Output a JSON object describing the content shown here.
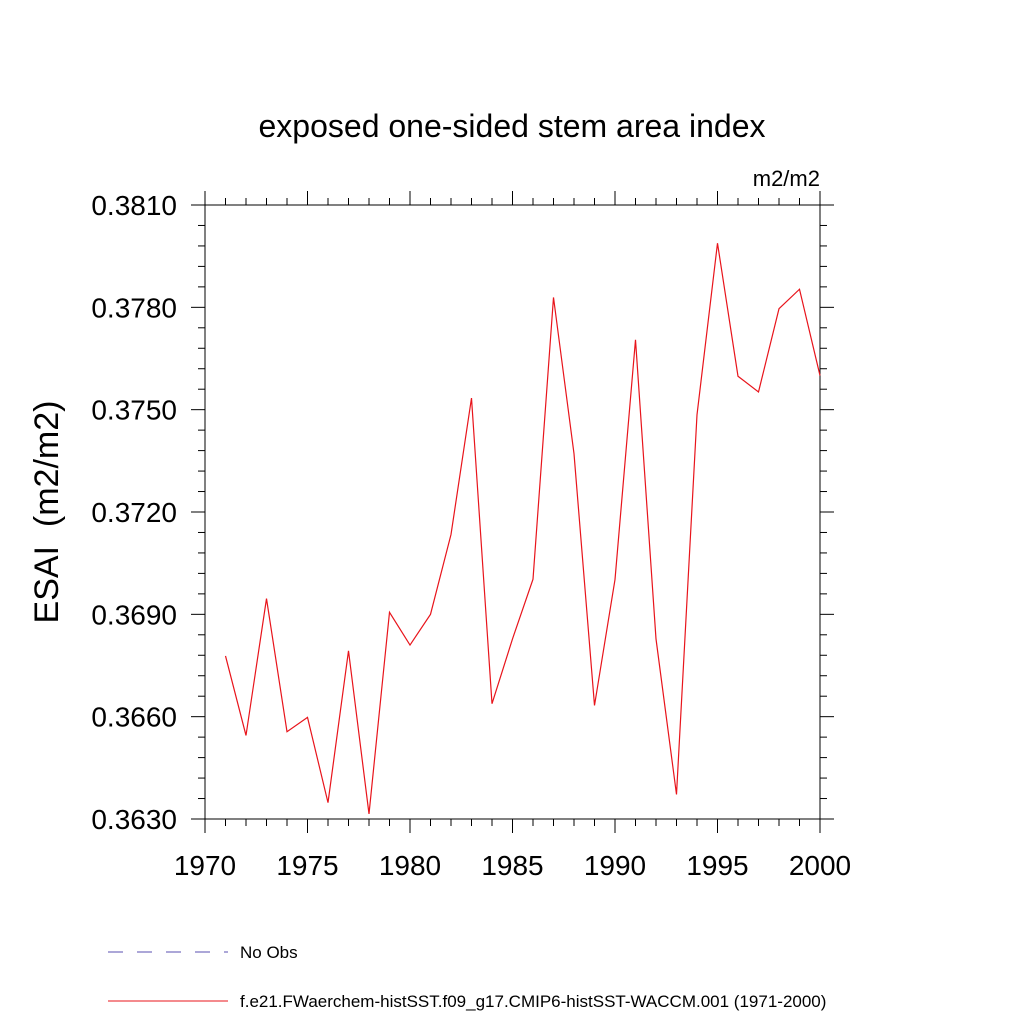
{
  "chart_data": {
    "type": "line",
    "title": "exposed one-sided stem area index",
    "units_label": "m2/m2",
    "ylabel": "ESAI  (m2/m2)",
    "xlabel": "",
    "xlim": [
      1970,
      2000
    ],
    "ylim": [
      0.363,
      0.381
    ],
    "x_ticks": [
      "1970",
      "1975",
      "1980",
      "1985",
      "1990",
      "1995",
      "2000"
    ],
    "y_ticks": [
      "0.3630",
      "0.3660",
      "0.3690",
      "0.3720",
      "0.3750",
      "0.3780",
      "0.3810"
    ],
    "grid": false,
    "legend_position": "bottom",
    "series": [
      {
        "name": "No Obs",
        "color": "#5a4fb0",
        "dash": "dashed",
        "x": [],
        "y": []
      },
      {
        "name": "f.e21.FWaerchem-histSST.f09_g17.CMIP6-histSST-WACCM.001 (1971-2000)",
        "color": "#e8141b",
        "dash": "solid",
        "x": [
          1971,
          1972,
          1973,
          1974,
          1975,
          1976,
          1977,
          1978,
          1979,
          1980,
          1981,
          1982,
          1983,
          1984,
          1985,
          1986,
          1987,
          1988,
          1989,
          1990,
          1991,
          1992,
          1993,
          1994,
          1995,
          1996,
          1997,
          1998,
          1999,
          2000
        ],
        "y": [
          0.36778,
          0.36545,
          0.36946,
          0.36556,
          0.36598,
          0.36348,
          0.36793,
          0.36315,
          0.36906,
          0.3681,
          0.369,
          0.37134,
          0.37534,
          0.36638,
          0.36828,
          0.37003,
          0.37829,
          0.37371,
          0.36633,
          0.37002,
          0.37705,
          0.36828,
          0.36372,
          0.37485,
          0.37988,
          0.37598,
          0.37552,
          0.37796,
          0.37853,
          0.376
        ]
      }
    ]
  }
}
